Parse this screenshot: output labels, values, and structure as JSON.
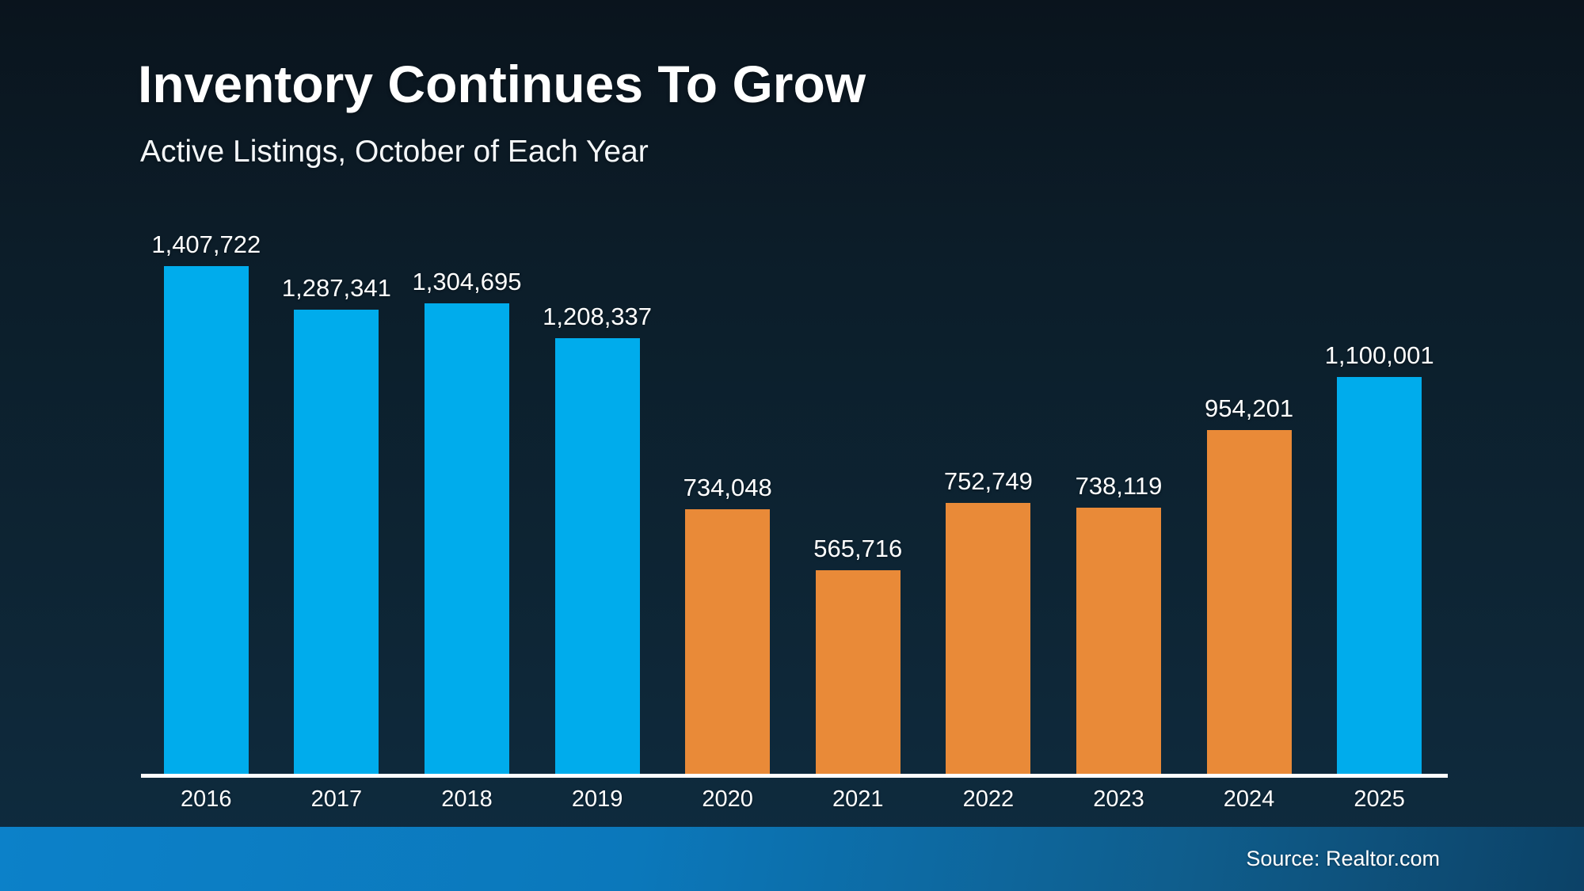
{
  "title": "Inventory Continues To Grow",
  "subtitle": "Active Listings, October of Each Year",
  "source": "Source: Realtor.com",
  "colors": {
    "bar_blue": "#00ACEC",
    "bar_orange": "#E98A38",
    "axis_line": "#FFFFFF",
    "text": "#FFFFFF",
    "background_top": "#0A141D",
    "background_bottom": "#0F2C40",
    "footer_left": "#0C81C9",
    "footer_right": "#0C4267"
  },
  "chart_data": {
    "type": "bar",
    "title": "Inventory Continues To Grow",
    "subtitle": "Active Listings, October of Each Year",
    "xlabel": "",
    "ylabel": "",
    "categories": [
      "2016",
      "2017",
      "2018",
      "2019",
      "2020",
      "2021",
      "2022",
      "2023",
      "2024",
      "2025"
    ],
    "values": [
      1407722,
      1287341,
      1304695,
      1208337,
      734048,
      565716,
      752749,
      738119,
      954201,
      1100001
    ],
    "display_values": [
      "1,407,722",
      "1,287,341",
      "1,304,695",
      "1,208,337",
      "734,048",
      "565,716",
      "752,749",
      "738,119",
      "954,201",
      "1,100,001"
    ],
    "bar_colors": [
      "#00ACEC",
      "#00ACEC",
      "#00ACEC",
      "#00ACEC",
      "#E98A38",
      "#E98A38",
      "#E98A38",
      "#E98A38",
      "#E98A38",
      "#00ACEC"
    ],
    "ylim": [
      0,
      1407722
    ],
    "grid": false,
    "y_axis_visible": false,
    "legend": null,
    "data_labels": "above bars",
    "source_note": "Source: Realtor.com"
  }
}
